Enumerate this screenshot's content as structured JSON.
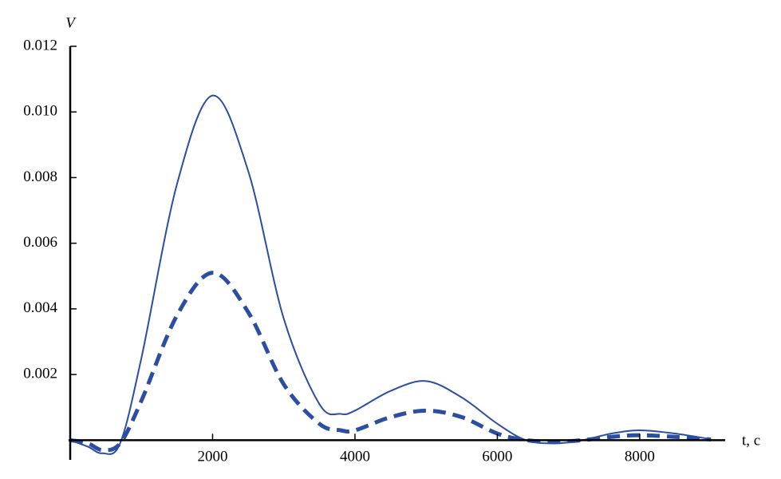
{
  "chart_data": {
    "type": "line",
    "y_label": "V",
    "x_label": "t, c",
    "x": [
      0,
      250,
      450,
      700,
      1000,
      1500,
      2000,
      2500,
      3000,
      3500,
      3800,
      4000,
      4500,
      5000,
      5500,
      6000,
      6400,
      6800,
      7200,
      7600,
      8000,
      8500,
      9000
    ],
    "series": [
      {
        "color": "#2b4ea2",
        "style": "solid",
        "values": [
          0,
          -0.0002,
          -0.0004,
          -0.0001,
          0.0025,
          0.0078,
          0.0105,
          0.0082,
          0.0037,
          0.0011,
          0.0008,
          0.0009,
          0.0015,
          0.0018,
          0.0013,
          0.0005,
          0,
          -0.0001,
          0,
          0.0002,
          0.0003,
          0.0002,
          3e-05
        ]
      },
      {
        "color": "#2b4ea2",
        "style": "dashed",
        "values": [
          0,
          -0.0001,
          -0.0003,
          -0.0001,
          0.0012,
          0.0038,
          0.0051,
          0.0039,
          0.0017,
          0.0005,
          0.0003,
          0.0003,
          0.0007,
          0.0009,
          0.0007,
          0.0002,
          0,
          -5e-05,
          0,
          0.0001,
          0.00015,
          0.0001,
          2e-05
        ]
      }
    ],
    "xlim": [
      0,
      9200
    ],
    "ylim": [
      -0.0006,
      0.012
    ],
    "xticks": [
      2000,
      4000,
      6000,
      8000
    ],
    "yticks": [
      0.002,
      0.004,
      0.006,
      0.008,
      {
        "value": 0.01,
        "label": "0.010"
      },
      0.012
    ]
  }
}
